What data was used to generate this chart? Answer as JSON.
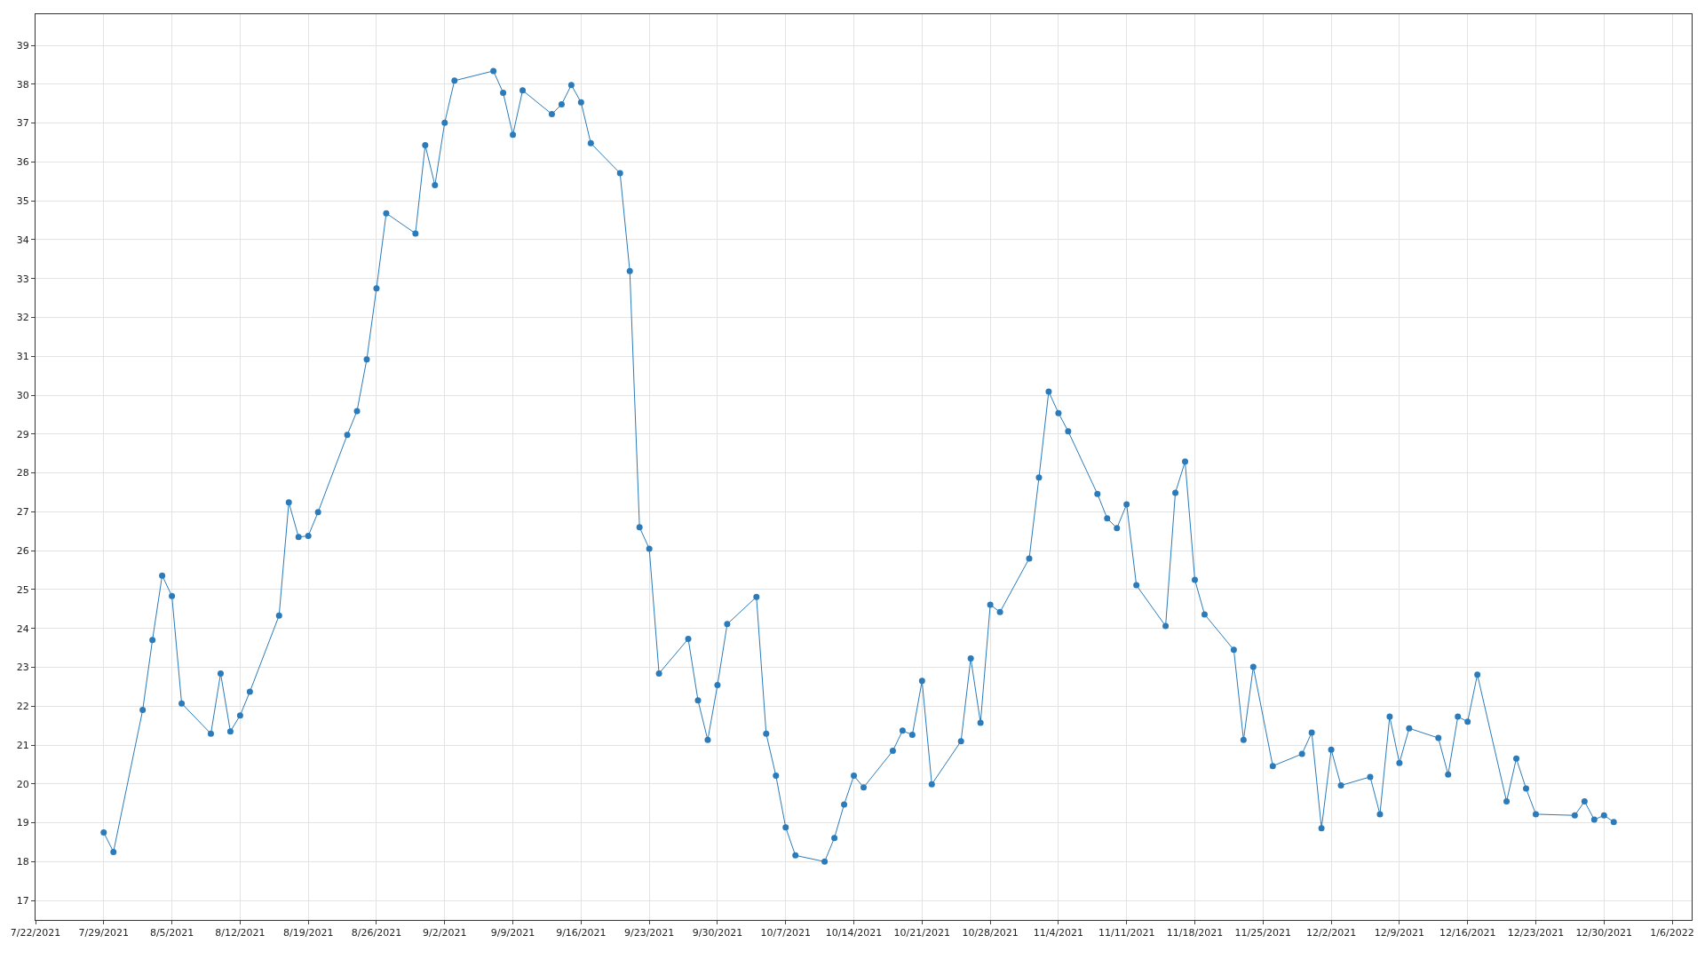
{
  "chart_data": {
    "type": "line",
    "marker": "circle",
    "line_style": "solid",
    "grid": true,
    "xlim": [
      "2021-07-22",
      "2022-01-08"
    ],
    "xticks": [
      {
        "value": "2021-07-22",
        "label": "7/22/2021"
      },
      {
        "value": "2021-07-29",
        "label": "7/29/2021"
      },
      {
        "value": "2021-08-05",
        "label": "8/5/2021"
      },
      {
        "value": "2021-08-12",
        "label": "8/12/2021"
      },
      {
        "value": "2021-08-19",
        "label": "8/19/2021"
      },
      {
        "value": "2021-08-26",
        "label": "8/26/2021"
      },
      {
        "value": "2021-09-02",
        "label": "9/2/2021"
      },
      {
        "value": "2021-09-09",
        "label": "9/9/2021"
      },
      {
        "value": "2021-09-16",
        "label": "9/16/2021"
      },
      {
        "value": "2021-09-23",
        "label": "9/23/2021"
      },
      {
        "value": "2021-09-30",
        "label": "9/30/2021"
      },
      {
        "value": "2021-10-07",
        "label": "10/7/2021"
      },
      {
        "value": "2021-10-14",
        "label": "10/14/2021"
      },
      {
        "value": "2021-10-21",
        "label": "10/21/2021"
      },
      {
        "value": "2021-10-28",
        "label": "10/28/2021"
      },
      {
        "value": "2021-11-04",
        "label": "11/4/2021"
      },
      {
        "value": "2021-11-11",
        "label": "11/11/2021"
      },
      {
        "value": "2021-11-18",
        "label": "11/18/2021"
      },
      {
        "value": "2021-11-25",
        "label": "11/25/2021"
      },
      {
        "value": "2021-12-02",
        "label": "12/2/2021"
      },
      {
        "value": "2021-12-09",
        "label": "12/9/2021"
      },
      {
        "value": "2021-12-16",
        "label": "12/16/2021"
      },
      {
        "value": "2021-12-23",
        "label": "12/23/2021"
      },
      {
        "value": "2021-12-30",
        "label": "12/30/2021"
      },
      {
        "value": "2022-01-06",
        "label": "1/6/2022"
      }
    ],
    "ylim": [
      16.5,
      39.8
    ],
    "yticks": [
      17,
      18,
      19,
      20,
      21,
      22,
      23,
      24,
      25,
      26,
      27,
      28,
      29,
      30,
      31,
      32,
      33,
      34,
      35,
      36,
      37,
      38,
      39
    ],
    "x": [
      "2021-07-29",
      "2021-07-30",
      "2021-08-02",
      "2021-08-03",
      "2021-08-04",
      "2021-08-05",
      "2021-08-06",
      "2021-08-09",
      "2021-08-10",
      "2021-08-11",
      "2021-08-12",
      "2021-08-13",
      "2021-08-16",
      "2021-08-17",
      "2021-08-18",
      "2021-08-19",
      "2021-08-20",
      "2021-08-23",
      "2021-08-24",
      "2021-08-25",
      "2021-08-26",
      "2021-08-27",
      "2021-08-30",
      "2021-08-31",
      "2021-09-01",
      "2021-09-02",
      "2021-09-03",
      "2021-09-07",
      "2021-09-08",
      "2021-09-09",
      "2021-09-10",
      "2021-09-13",
      "2021-09-14",
      "2021-09-15",
      "2021-09-16",
      "2021-09-17",
      "2021-09-20",
      "2021-09-21",
      "2021-09-22",
      "2021-09-23",
      "2021-09-24",
      "2021-09-27",
      "2021-09-28",
      "2021-09-29",
      "2021-09-30",
      "2021-10-01",
      "2021-10-04",
      "2021-10-05",
      "2021-10-06",
      "2021-10-07",
      "2021-10-08",
      "2021-10-11",
      "2021-10-12",
      "2021-10-13",
      "2021-10-14",
      "2021-10-15",
      "2021-10-18",
      "2021-10-19",
      "2021-10-20",
      "2021-10-21",
      "2021-10-22",
      "2021-10-25",
      "2021-10-26",
      "2021-10-27",
      "2021-10-28",
      "2021-10-29",
      "2021-11-01",
      "2021-11-02",
      "2021-11-03",
      "2021-11-04",
      "2021-11-05",
      "2021-11-08",
      "2021-11-09",
      "2021-11-10",
      "2021-11-11",
      "2021-11-12",
      "2021-11-15",
      "2021-11-16",
      "2021-11-17",
      "2021-11-18",
      "2021-11-19",
      "2021-11-22",
      "2021-11-23",
      "2021-11-24",
      "2021-11-26",
      "2021-11-29",
      "2021-11-30",
      "2021-12-01",
      "2021-12-02",
      "2021-12-03",
      "2021-12-06",
      "2021-12-07",
      "2021-12-08",
      "2021-12-09",
      "2021-12-10",
      "2021-12-13",
      "2021-12-14",
      "2021-12-15",
      "2021-12-16",
      "2021-12-17",
      "2021-12-20",
      "2021-12-21",
      "2021-12-22",
      "2021-12-23",
      "2021-12-27",
      "2021-12-28",
      "2021-12-29",
      "2021-12-30",
      "2021-12-31"
    ],
    "series": [
      {
        "color": "#2b7bba",
        "values": [
          18.75,
          18.25,
          21.9,
          23.7,
          25.36,
          24.83,
          22.07,
          21.29,
          22.84,
          21.35,
          21.76,
          22.37,
          24.33,
          27.24,
          26.35,
          26.38,
          26.99,
          28.98,
          29.59,
          30.92,
          32.75,
          34.68,
          34.16,
          36.43,
          35.4,
          37.01,
          38.09,
          38.34,
          37.78,
          36.7,
          37.84,
          37.23,
          37.48,
          37.98,
          37.53,
          36.48,
          35.71,
          33.19,
          26.6,
          26.05,
          22.84,
          23.73,
          22.15,
          21.13,
          22.54,
          24.11,
          24.81,
          21.29,
          20.21,
          18.88,
          18.16,
          18.0,
          18.61,
          19.47,
          20.21,
          19.91,
          20.85,
          21.37,
          21.26,
          22.65,
          19.99,
          21.1,
          23.23,
          21.57,
          24.61,
          24.42,
          25.8,
          27.88,
          30.09,
          29.54,
          29.07,
          27.46,
          26.83,
          26.58,
          27.19,
          25.11,
          24.06,
          27.49,
          28.29,
          25.25,
          24.36,
          23.45,
          21.13,
          23.01,
          20.46,
          20.77,
          21.32,
          18.86,
          20.88,
          19.96,
          20.18,
          19.22,
          21.73,
          20.54,
          21.43,
          21.18,
          20.24,
          21.73,
          21.6,
          22.81,
          19.55,
          20.65,
          19.88,
          19.22,
          19.19,
          19.55,
          19.08,
          19.19,
          19.02
        ]
      }
    ]
  }
}
